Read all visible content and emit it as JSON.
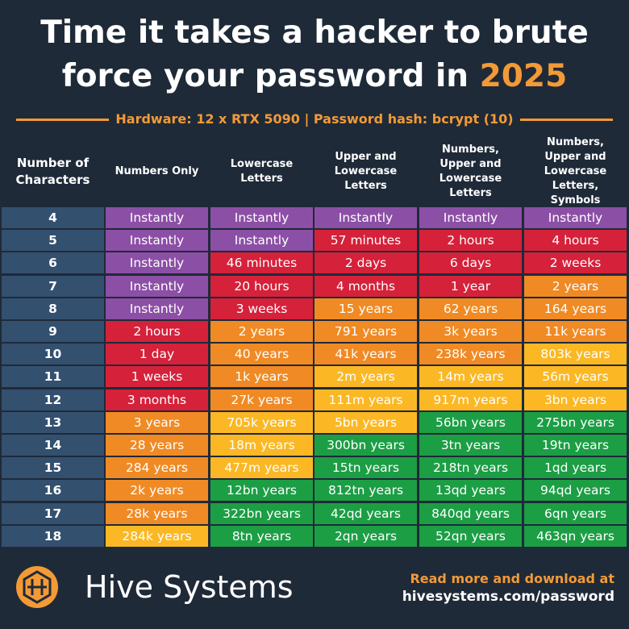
{
  "header": {
    "title_main": "Time it takes a hacker to brute force your password in",
    "title_year": "2025",
    "subtitle": "Hardware: 12 x RTX 5090 | Password hash: bcrypt (10)"
  },
  "table": {
    "columns": [
      "Number of Characters",
      "Numbers Only",
      "Lowercase Letters",
      "Upper and Lowercase Letters",
      "Numbers, Upper and Lowercase Letters",
      "Numbers, Upper and Lowercase Letters, Symbols"
    ],
    "rows": [
      [
        4,
        "Instantly",
        "Instantly",
        "Instantly",
        "Instantly",
        "Instantly"
      ],
      [
        5,
        "Instantly",
        "Instantly",
        "57 minutes",
        "2 hours",
        "4 hours"
      ],
      [
        6,
        "Instantly",
        "46 minutes",
        "2 days",
        "6 days",
        "2 weeks"
      ],
      [
        7,
        "Instantly",
        "20 hours",
        "4 months",
        "1 year",
        "2 years"
      ],
      [
        8,
        "Instantly",
        "3 weeks",
        "15 years",
        "62 years",
        "164 years"
      ],
      [
        9,
        "2 hours",
        "2 years",
        "791 years",
        "3k years",
        "11k years"
      ],
      [
        10,
        "1 day",
        "40 years",
        "41k years",
        "238k years",
        "803k years"
      ],
      [
        11,
        "1 weeks",
        "1k years",
        "2m years",
        "14m years",
        "56m years"
      ],
      [
        12,
        "3 months",
        "27k years",
        "111m years",
        "917m years",
        "3bn years"
      ],
      [
        13,
        "3 years",
        "705k years",
        "5bn years",
        "56bn years",
        "275bn years"
      ],
      [
        14,
        "28 years",
        "18m years",
        "300bn years",
        "3tn years",
        "19tn years"
      ],
      [
        15,
        "284 years",
        "477m years",
        "15tn years",
        "218tn years",
        "1qd years"
      ],
      [
        16,
        "2k years",
        "12bn years",
        "812tn years",
        "13qd years",
        "94qd years"
      ],
      [
        17,
        "28k years",
        "322bn years",
        "42qd years",
        "840qd years",
        "6qn years"
      ],
      [
        18,
        "284k years",
        "8tn years",
        "2qn years",
        "52qn years",
        "463qn years"
      ]
    ]
  },
  "footer": {
    "brand": "Hive Systems",
    "cta": "Read more and download at",
    "url": "hivesystems.com/password"
  }
}
